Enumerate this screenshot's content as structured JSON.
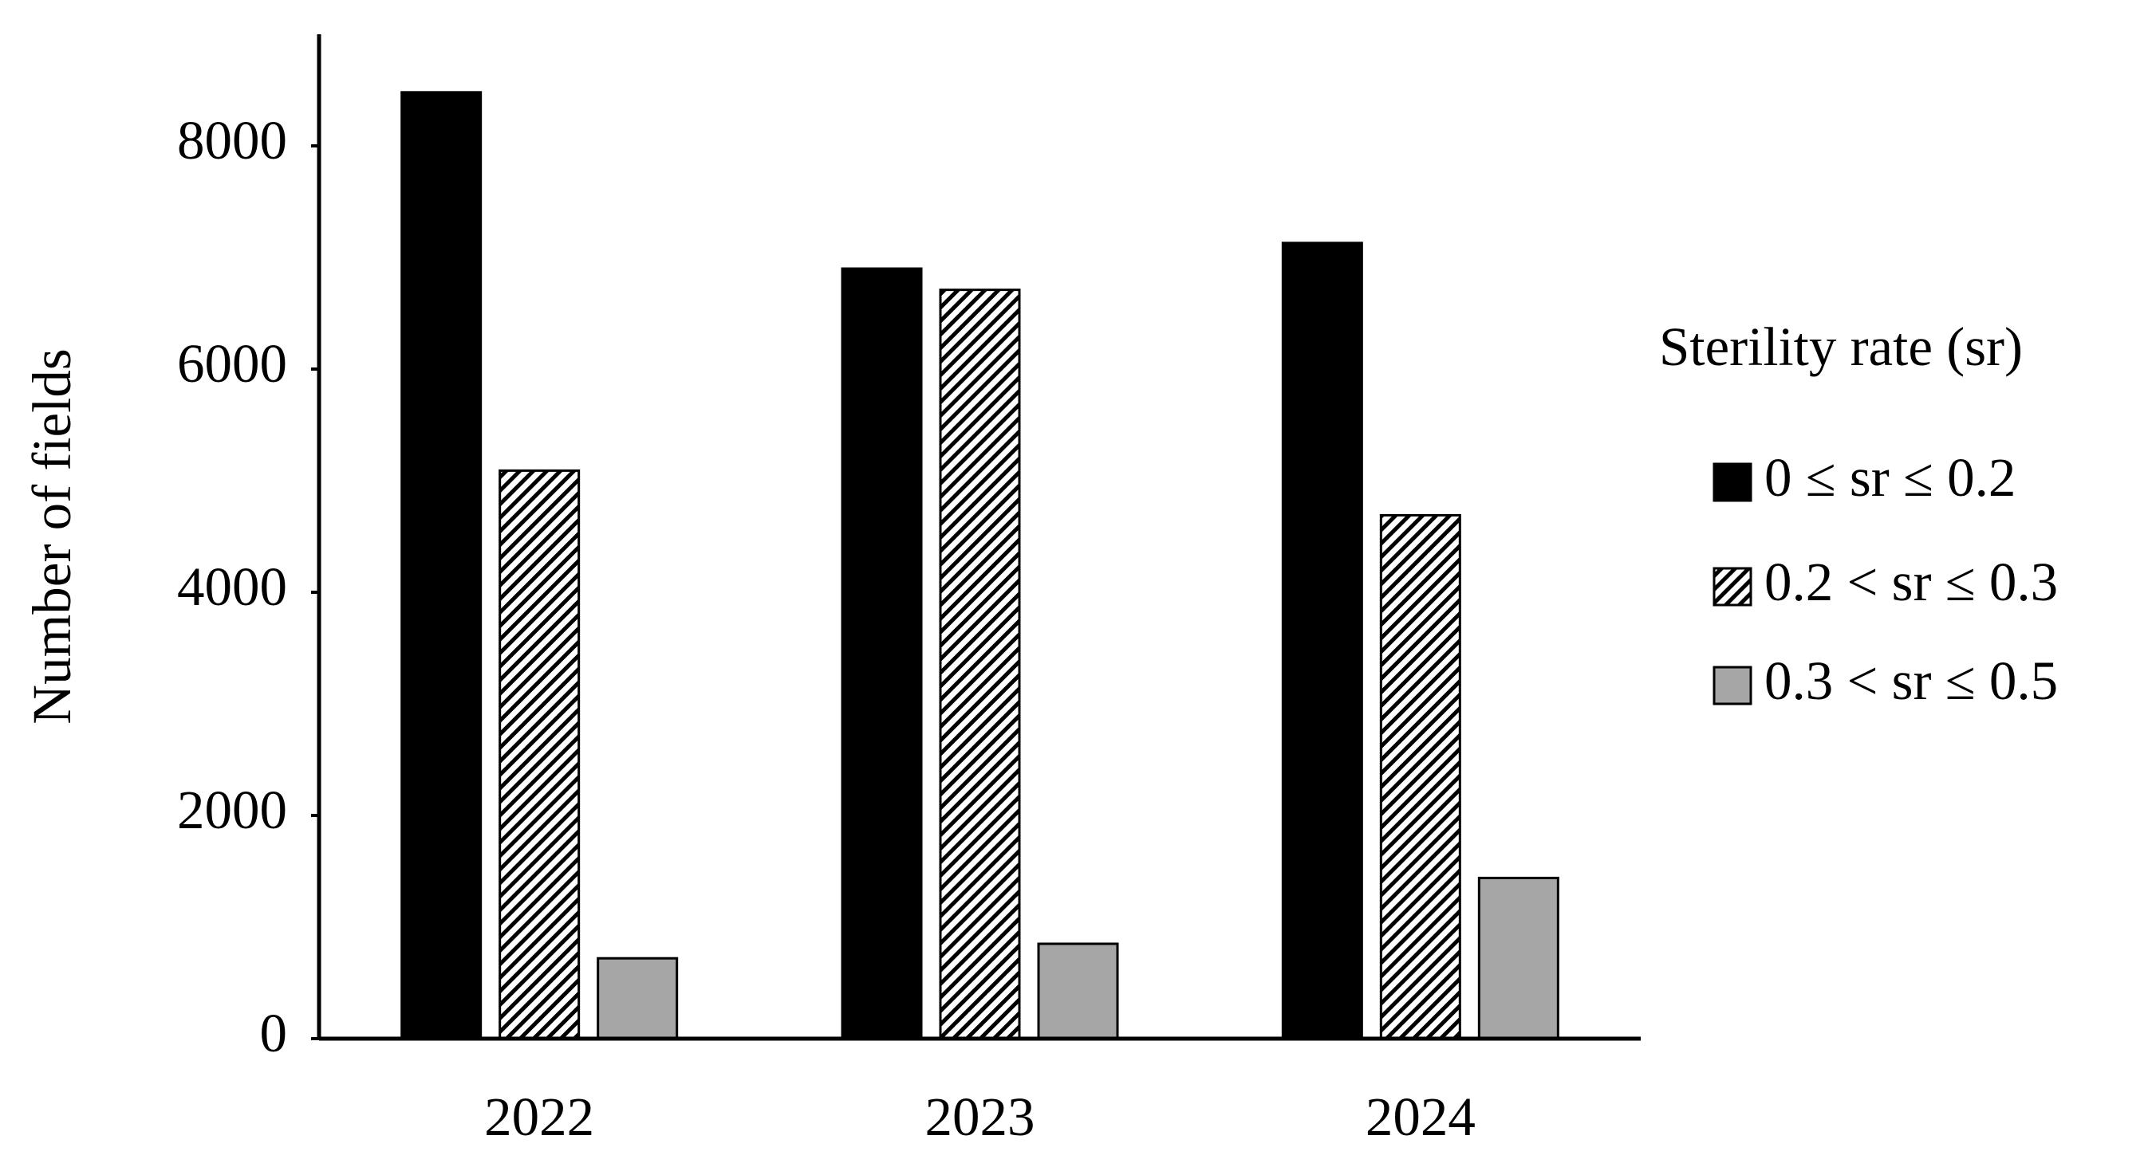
{
  "chart_data": {
    "type": "bar",
    "y_label": "Number of fields",
    "legend_title": "Sterility rate (sr)",
    "categories": [
      "2022",
      "2023",
      "2024"
    ],
    "series": [
      {
        "name": "0 ≤ sr ≤ 0.2",
        "color": "#000000",
        "values": [
          8480,
          6900,
          7130
        ]
      },
      {
        "name": "0.2 < sr ≤ 0.3",
        "color": "#ffffff",
        "hatch": true,
        "values": [
          5090,
          6710,
          4690
        ]
      },
      {
        "name": "0.3 < sr ≤ 0.5",
        "color": "#a6a6a6",
        "values": [
          720,
          850,
          1440
        ]
      }
    ],
    "ylim": [
      0,
      9000
    ],
    "yticks": [
      0,
      2000,
      4000,
      6000,
      8000
    ],
    "grid": false,
    "legend_position": "right"
  }
}
